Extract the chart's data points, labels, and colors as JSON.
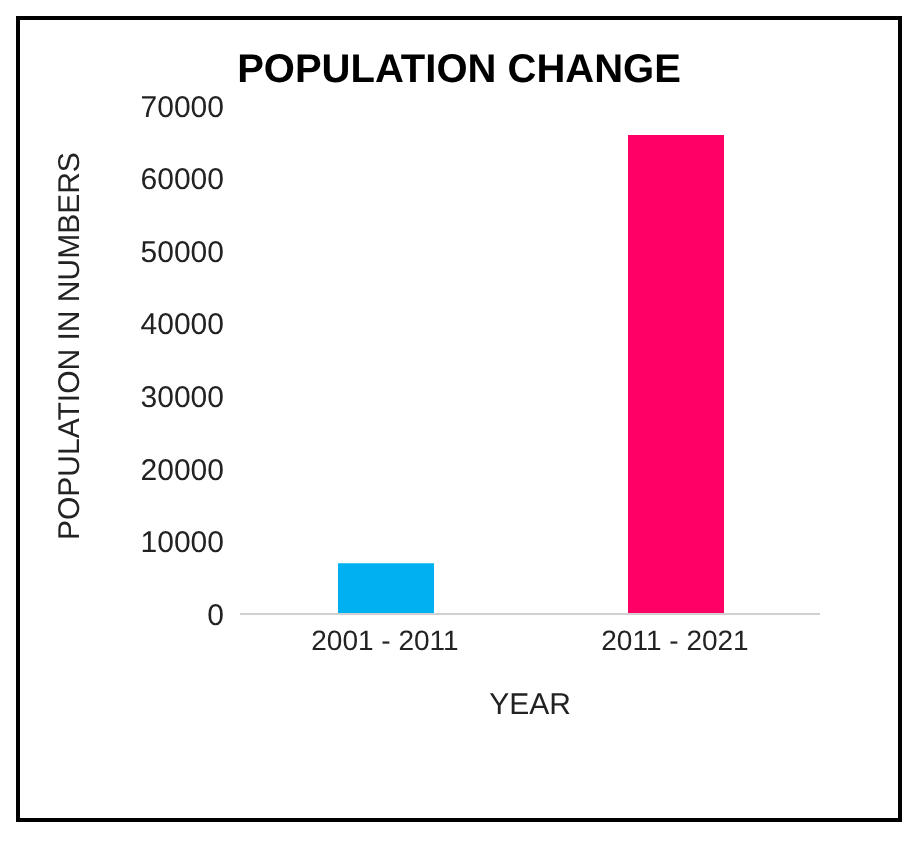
{
  "chart_data": {
    "type": "bar",
    "title": "POPULATION CHANGE",
    "xlabel": "YEAR",
    "ylabel": "POPULATION IN NUMBERS",
    "categories": [
      "2001 - 2011",
      "2011 - 2021"
    ],
    "values": [
      7000,
      66000
    ],
    "colors": [
      "#00b0f0",
      "#ff0066"
    ],
    "ylim": [
      0,
      70000
    ],
    "yticks": [
      0,
      10000,
      20000,
      30000,
      40000,
      50000,
      60000,
      70000
    ],
    "grid": false,
    "legend": false
  }
}
